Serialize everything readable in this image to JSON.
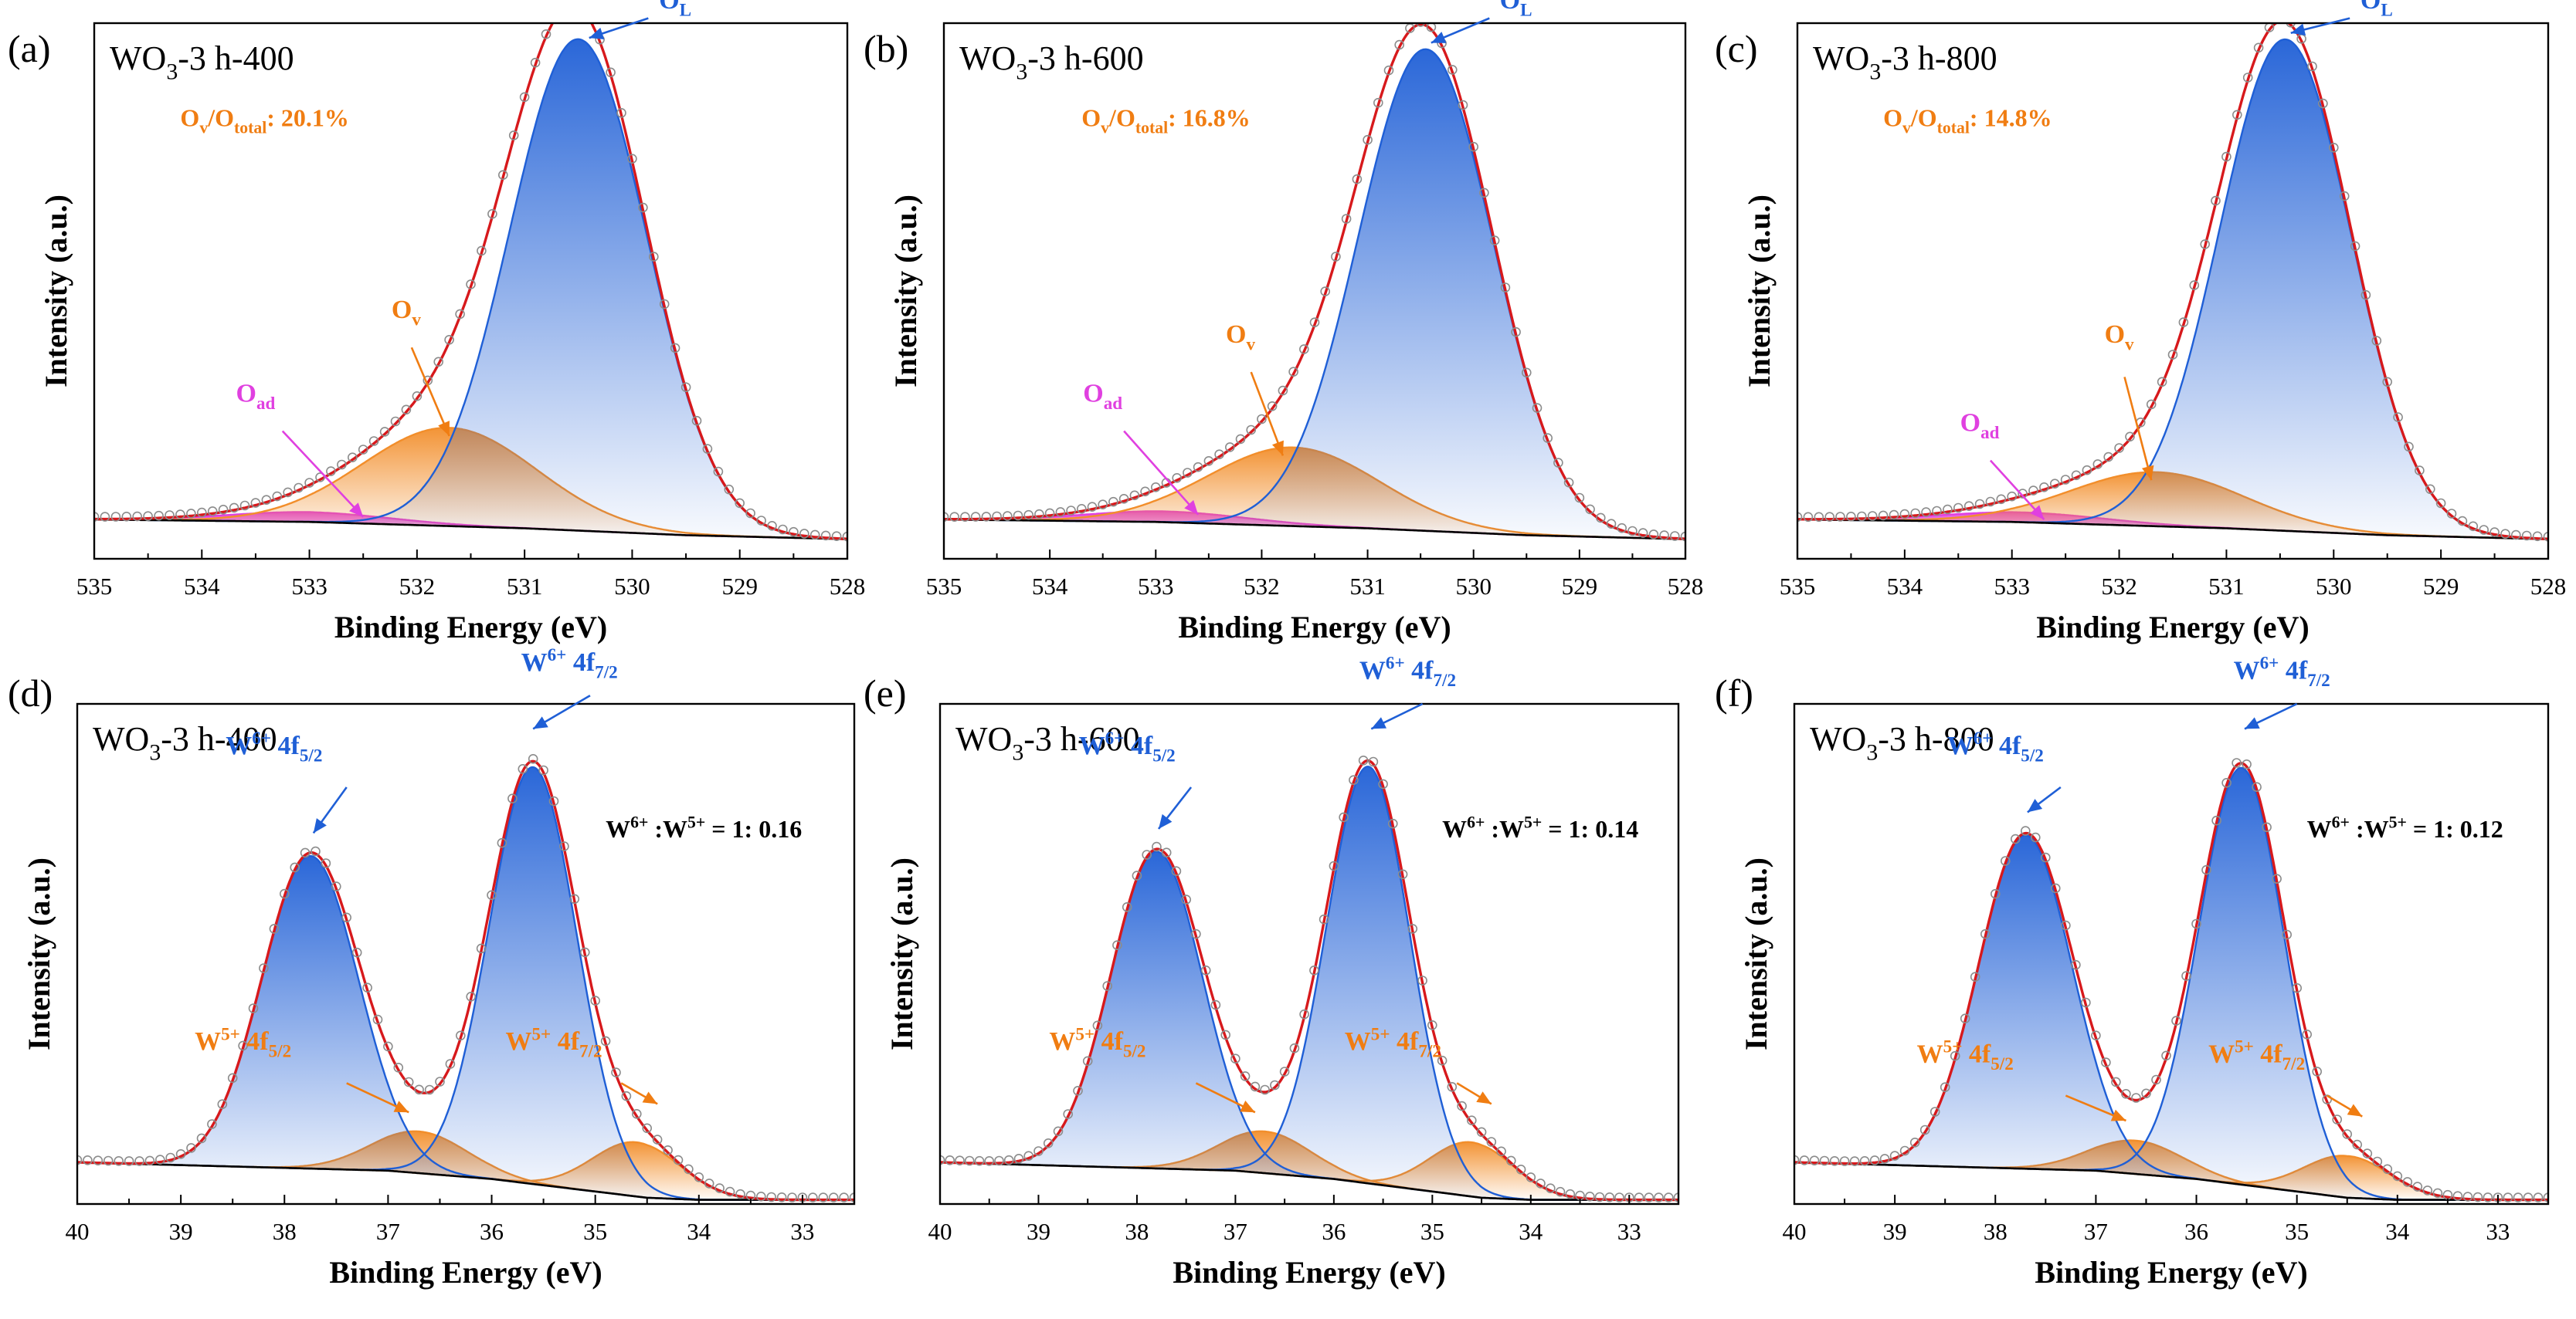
{
  "figure": {
    "colors": {
      "axis": "#000000",
      "envelope": "#d7191c",
      "raw_marker": "#8c8c8c",
      "background_line": "#000000",
      "lattice_blue": "#1f5fd6",
      "vacancy_orange": "#f28e2b",
      "adsorbed_magenta": "#e040e0",
      "annotation_blue": "#1f5fd6",
      "annotation_orange": "#f07d12",
      "annotation_black": "#000000"
    }
  },
  "chart_data": [
    {
      "panel": "(a)",
      "type": "line",
      "region": "O1s",
      "sample": "WO",
      "sample_sub": "3",
      "sample_rest": "-3 h-400",
      "xlabel": "Binding Energy (eV)",
      "ylabel": "Intensity (a.u.)",
      "xlim": [
        535,
        528
      ],
      "ylim": [
        -0.04,
        1.05
      ],
      "xticks": [
        535,
        534,
        533,
        532,
        531,
        530,
        529,
        528
      ],
      "baseline": {
        "x": [
          535,
          533,
          531,
          529.5,
          528
        ],
        "y": [
          0.04,
          0.035,
          0.022,
          0.008,
          0.0
        ]
      },
      "peaks": [
        {
          "name": "OL",
          "center": 530.5,
          "height": 1.0,
          "fwhm": 1.5,
          "color_key": "lattice_blue",
          "fill": true
        },
        {
          "name": "Ov",
          "center": 531.7,
          "height": 0.2,
          "fwhm": 1.9,
          "color_key": "vacancy_orange",
          "fill": true
        },
        {
          "name": "Oad",
          "center": 533.0,
          "height": 0.02,
          "fwhm": 1.8,
          "color_key": "adsorbed_magenta",
          "fill": true
        }
      ],
      "raw_step": 0.1,
      "annotations": [
        {
          "type": "label",
          "base": "O",
          "sub": "L",
          "tx": 529.6,
          "ty": 1.08,
          "ax": 529.85,
          "ay": 1.06,
          "bx": 530.4,
          "by": 1.02,
          "color_key": "annotation_blue"
        },
        {
          "type": "label",
          "base": "O",
          "sub": "v",
          "tx": 532.1,
          "ty": 0.45,
          "ax": 532.05,
          "ay": 0.39,
          "bx": 531.7,
          "by": 0.21,
          "color_key": "annotation_orange"
        },
        {
          "type": "label",
          "base": "O",
          "sub": "ad",
          "tx": 533.5,
          "ty": 0.28,
          "ax": 533.25,
          "ay": 0.22,
          "bx": 532.5,
          "by": 0.045,
          "color_key": "adsorbed_magenta"
        },
        {
          "type": "ratio",
          "tx": 534.2,
          "ty": 0.84,
          "color_key": "annotation_orange",
          "parts": [
            [
              "O",
              ""
            ],
            [
              "v",
              "sub"
            ],
            [
              "/O",
              ""
            ],
            [
              "total",
              "sub"
            ],
            [
              ": 20.1%",
              ""
            ]
          ]
        }
      ]
    },
    {
      "panel": "(b)",
      "type": "line",
      "region": "O1s",
      "sample": "WO",
      "sample_sub": "3",
      "sample_rest": "-3 h-600",
      "xlabel": "Binding Energy (eV)",
      "ylabel": "Intensity (a.u.)",
      "xlim": [
        535,
        528
      ],
      "ylim": [
        -0.04,
        1.05
      ],
      "xticks": [
        535,
        534,
        533,
        532,
        531,
        530,
        529,
        528
      ],
      "baseline": {
        "x": [
          535,
          533,
          531,
          529.5,
          528
        ],
        "y": [
          0.04,
          0.035,
          0.022,
          0.008,
          0.0
        ]
      },
      "peaks": [
        {
          "name": "OL",
          "center": 530.45,
          "height": 0.98,
          "fwhm": 1.5,
          "color_key": "lattice_blue",
          "fill": true
        },
        {
          "name": "Ov",
          "center": 531.7,
          "height": 0.16,
          "fwhm": 1.9,
          "color_key": "vacancy_orange",
          "fill": true
        },
        {
          "name": "Oad",
          "center": 532.9,
          "height": 0.022,
          "fwhm": 1.8,
          "color_key": "adsorbed_magenta",
          "fill": true
        }
      ],
      "raw_step": 0.1,
      "annotations": [
        {
          "type": "label",
          "base": "O",
          "sub": "L",
          "tx": 529.6,
          "ty": 1.08,
          "ax": 529.85,
          "ay": 1.06,
          "bx": 530.4,
          "by": 1.01,
          "color_key": "annotation_blue"
        },
        {
          "type": "label",
          "base": "O",
          "sub": "v",
          "tx": 532.2,
          "ty": 0.4,
          "ax": 532.1,
          "ay": 0.34,
          "bx": 531.8,
          "by": 0.17,
          "color_key": "annotation_orange"
        },
        {
          "type": "label",
          "base": "O",
          "sub": "ad",
          "tx": 533.5,
          "ty": 0.28,
          "ax": 533.3,
          "ay": 0.22,
          "bx": 532.6,
          "by": 0.05,
          "color_key": "adsorbed_magenta"
        },
        {
          "type": "ratio",
          "tx": 533.7,
          "ty": 0.84,
          "color_key": "annotation_orange",
          "parts": [
            [
              "O",
              ""
            ],
            [
              "v",
              "sub"
            ],
            [
              "/O",
              ""
            ],
            [
              "total",
              "sub"
            ],
            [
              ": 16.8%",
              ""
            ]
          ]
        }
      ]
    },
    {
      "panel": "(c)",
      "type": "line",
      "region": "O1s",
      "sample": "WO",
      "sample_sub": "3",
      "sample_rest": "-3 h-800",
      "xlabel": "Binding Energy (eV)",
      "ylabel": "Intensity (a.u.)",
      "xlim": [
        535,
        528
      ],
      "ylim": [
        -0.04,
        1.05
      ],
      "xticks": [
        535,
        534,
        533,
        532,
        531,
        530,
        529,
        528
      ],
      "baseline": {
        "x": [
          535,
          533,
          531,
          529.5,
          528
        ],
        "y": [
          0.04,
          0.035,
          0.022,
          0.008,
          0.0
        ]
      },
      "peaks": [
        {
          "name": "OL",
          "center": 530.45,
          "height": 1.0,
          "fwhm": 1.45,
          "color_key": "lattice_blue",
          "fill": true
        },
        {
          "name": "Ov",
          "center": 531.65,
          "height": 0.11,
          "fwhm": 1.9,
          "color_key": "vacancy_orange",
          "fill": true
        },
        {
          "name": "Oad",
          "center": 532.9,
          "height": 0.02,
          "fwhm": 1.8,
          "color_key": "adsorbed_magenta",
          "fill": true
        }
      ],
      "raw_step": 0.1,
      "annotations": [
        {
          "type": "label",
          "base": "O",
          "sub": "L",
          "tx": 529.6,
          "ty": 1.08,
          "ax": 529.85,
          "ay": 1.06,
          "bx": 530.4,
          "by": 1.03,
          "color_key": "annotation_blue"
        },
        {
          "type": "label",
          "base": "O",
          "sub": "v",
          "tx": 532.0,
          "ty": 0.4,
          "ax": 531.95,
          "ay": 0.33,
          "bx": 531.7,
          "by": 0.12,
          "color_key": "annotation_orange"
        },
        {
          "type": "label",
          "base": "O",
          "sub": "ad",
          "tx": 533.3,
          "ty": 0.22,
          "ax": 533.2,
          "ay": 0.16,
          "bx": 532.7,
          "by": 0.04,
          "color_key": "adsorbed_magenta"
        },
        {
          "type": "ratio",
          "tx": 534.2,
          "ty": 0.84,
          "color_key": "annotation_orange",
          "parts": [
            [
              "O",
              ""
            ],
            [
              "v",
              "sub"
            ],
            [
              "/O",
              ""
            ],
            [
              "total",
              "sub"
            ],
            [
              ": 14.8%",
              ""
            ]
          ]
        }
      ]
    },
    {
      "panel": "(d)",
      "type": "line",
      "region": "W4f",
      "sample": "WO",
      "sample_sub": "3",
      "sample_rest": "-3 h-400",
      "xlabel": "Binding Energy (eV)",
      "ylabel": "Intensity (a.u.)",
      "xlim": [
        40,
        32.5
      ],
      "ylim": [
        -0.1,
        1.1
      ],
      "xticks": [
        40,
        39,
        38,
        37,
        36,
        35,
        34,
        33
      ],
      "baseline": {
        "x": [
          40,
          38.5,
          37,
          36,
          35,
          34.5,
          34,
          33,
          32.5
        ],
        "y": [
          0.0,
          -0.01,
          -0.02,
          -0.04,
          -0.07,
          -0.085,
          -0.09,
          -0.09,
          -0.09
        ]
      },
      "peaks": [
        {
          "name": "W6+ 4f5/2",
          "center": 37.75,
          "height": 0.75,
          "fwhm": 1.1,
          "color_key": "lattice_blue",
          "fill": true
        },
        {
          "name": "W6+ 4f7/2",
          "center": 35.6,
          "height": 1.0,
          "fwhm": 1.0,
          "color_key": "lattice_blue",
          "fill": true
        },
        {
          "name": "W5+ 4f5/2",
          "center": 36.7,
          "height": 0.1,
          "fwhm": 1.1,
          "color_key": "vacancy_orange",
          "fill": true
        },
        {
          "name": "W5+ 4f7/2",
          "center": 34.6,
          "height": 0.13,
          "fwhm": 1.0,
          "color_key": "vacancy_orange",
          "fill": true
        }
      ],
      "raw_step": 0.1,
      "annotations": [
        {
          "type": "label",
          "base": "W",
          "sup": "6+",
          "rest": " 4f",
          "sub": "5/2",
          "tx": 38.1,
          "ty": 0.98,
          "ax": 37.4,
          "ay": 0.9,
          "bx": 37.72,
          "by": 0.79,
          "color_key": "annotation_blue"
        },
        {
          "type": "label",
          "base": "W",
          "sup": "6+",
          "rest": " 4f",
          "sub": "7/2",
          "tx": 35.25,
          "ty": 1.18,
          "ax": 35.05,
          "ay": 1.12,
          "bx": 35.6,
          "by": 1.04,
          "color_key": "annotation_blue"
        },
        {
          "type": "label",
          "base": "W",
          "sup": "5+",
          "rest": " 4f",
          "sub": "5/2",
          "tx": 38.4,
          "ty": 0.27,
          "ax": 37.4,
          "ay": 0.19,
          "bx": 36.8,
          "by": 0.12,
          "color_key": "annotation_orange"
        },
        {
          "type": "label",
          "base": "W",
          "sup": "5+",
          "rest": " 4f",
          "sub": "7/2",
          "tx": 35.4,
          "ty": 0.27,
          "ax": 34.75,
          "ay": 0.19,
          "bx": 34.4,
          "by": 0.14,
          "color_key": "annotation_orange"
        },
        {
          "type": "ratio",
          "tx": 34.9,
          "ty": 0.78,
          "color_key": "annotation_black",
          "parts": [
            [
              "W",
              ""
            ],
            [
              "6+",
              "sup"
            ],
            [
              " :W",
              ""
            ],
            [
              "5+",
              "sup"
            ],
            [
              " = 1: 0.16",
              ""
            ]
          ]
        }
      ]
    },
    {
      "panel": "(e)",
      "type": "line",
      "region": "W4f",
      "sample": "WO",
      "sample_sub": "3",
      "sample_rest": "-3 h-600",
      "xlabel": "Binding Energy (eV)",
      "ylabel": "Intensity (a.u.)",
      "xlim": [
        40,
        32.5
      ],
      "ylim": [
        -0.1,
        1.1
      ],
      "xticks": [
        40,
        39,
        38,
        37,
        36,
        35,
        34,
        33
      ],
      "baseline": {
        "x": [
          40,
          38.5,
          37,
          36,
          35,
          34.5,
          34,
          33,
          32.5
        ],
        "y": [
          0.0,
          -0.01,
          -0.02,
          -0.04,
          -0.07,
          -0.085,
          -0.09,
          -0.09,
          -0.09
        ]
      },
      "peaks": [
        {
          "name": "W6+ 4f5/2",
          "center": 37.8,
          "height": 0.76,
          "fwhm": 1.1,
          "color_key": "lattice_blue",
          "fill": true
        },
        {
          "name": "W6+ 4f7/2",
          "center": 35.65,
          "height": 1.0,
          "fwhm": 1.0,
          "color_key": "lattice_blue",
          "fill": true
        },
        {
          "name": "W5+ 4f5/2",
          "center": 36.7,
          "height": 0.1,
          "fwhm": 1.1,
          "color_key": "vacancy_orange",
          "fill": true
        },
        {
          "name": "W5+ 4f7/2",
          "center": 34.6,
          "height": 0.13,
          "fwhm": 1.0,
          "color_key": "vacancy_orange",
          "fill": true
        }
      ],
      "raw_step": 0.1,
      "annotations": [
        {
          "type": "label",
          "base": "W",
          "sup": "6+",
          "rest": " 4f",
          "sub": "5/2",
          "tx": 38.1,
          "ty": 0.98,
          "ax": 37.45,
          "ay": 0.9,
          "bx": 37.78,
          "by": 0.8,
          "color_key": "annotation_blue"
        },
        {
          "type": "label",
          "base": "W",
          "sup": "6+",
          "rest": " 4f",
          "sub": "7/2",
          "tx": 35.25,
          "ty": 1.16,
          "ax": 35.1,
          "ay": 1.1,
          "bx": 35.62,
          "by": 1.04,
          "color_key": "annotation_blue"
        },
        {
          "type": "label",
          "base": "W",
          "sup": "5+",
          "rest": " 4f",
          "sub": "5/2",
          "tx": 38.4,
          "ty": 0.27,
          "ax": 37.4,
          "ay": 0.19,
          "bx": 36.8,
          "by": 0.12,
          "color_key": "annotation_orange"
        },
        {
          "type": "label",
          "base": "W",
          "sup": "5+",
          "rest": " 4f",
          "sub": "7/2",
          "tx": 35.4,
          "ty": 0.27,
          "ax": 34.75,
          "ay": 0.19,
          "bx": 34.4,
          "by": 0.14,
          "color_key": "annotation_orange"
        },
        {
          "type": "ratio",
          "tx": 34.9,
          "ty": 0.78,
          "color_key": "annotation_black",
          "parts": [
            [
              "W",
              ""
            ],
            [
              "6+",
              "sup"
            ],
            [
              " :W",
              ""
            ],
            [
              "5+",
              "sup"
            ],
            [
              " = 1: 0.14",
              ""
            ]
          ]
        }
      ]
    },
    {
      "panel": "(f)",
      "type": "line",
      "region": "W4f",
      "sample": "WO",
      "sample_sub": "3",
      "sample_rest": "-3 h-800",
      "xlabel": "Binding Energy (eV)",
      "ylabel": "Intensity (a.u.)",
      "xlim": [
        40,
        32.5
      ],
      "ylim": [
        -0.1,
        1.1
      ],
      "xticks": [
        40,
        39,
        38,
        37,
        36,
        35,
        34,
        33
      ],
      "baseline": {
        "x": [
          40,
          38.5,
          37,
          36,
          35,
          34.5,
          34,
          33,
          32.5
        ],
        "y": [
          0.0,
          -0.01,
          -0.02,
          -0.04,
          -0.07,
          -0.085,
          -0.09,
          -0.09,
          -0.09
        ]
      },
      "peaks": [
        {
          "name": "W6+ 4f5/2",
          "center": 37.7,
          "height": 0.8,
          "fwhm": 1.1,
          "color_key": "lattice_blue",
          "fill": true
        },
        {
          "name": "W6+ 4f7/2",
          "center": 35.55,
          "height": 1.0,
          "fwhm": 1.0,
          "color_key": "lattice_blue",
          "fill": true
        },
        {
          "name": "W5+ 4f5/2",
          "center": 36.6,
          "height": 0.08,
          "fwhm": 1.1,
          "color_key": "vacancy_orange",
          "fill": true
        },
        {
          "name": "W5+ 4f7/2",
          "center": 34.5,
          "height": 0.1,
          "fwhm": 1.0,
          "color_key": "vacancy_orange",
          "fill": true
        }
      ],
      "raw_step": 0.1,
      "annotations": [
        {
          "type": "label",
          "base": "W",
          "sup": "6+",
          "rest": " 4f",
          "sub": "5/2",
          "tx": 38.0,
          "ty": 0.98,
          "ax": 37.35,
          "ay": 0.9,
          "bx": 37.68,
          "by": 0.84,
          "color_key": "annotation_blue"
        },
        {
          "type": "label",
          "base": "W",
          "sup": "6+",
          "rest": " 4f",
          "sub": "7/2",
          "tx": 35.15,
          "ty": 1.16,
          "ax": 35.0,
          "ay": 1.1,
          "bx": 35.52,
          "by": 1.04,
          "color_key": "annotation_blue"
        },
        {
          "type": "label",
          "base": "W",
          "sup": "5+",
          "rest": " 4f",
          "sub": "5/2",
          "tx": 38.3,
          "ty": 0.24,
          "ax": 37.3,
          "ay": 0.16,
          "bx": 36.7,
          "by": 0.1,
          "color_key": "annotation_orange"
        },
        {
          "type": "label",
          "base": "W",
          "sup": "5+",
          "rest": " 4f",
          "sub": "7/2",
          "tx": 35.4,
          "ty": 0.24,
          "ax": 34.7,
          "ay": 0.16,
          "bx": 34.35,
          "by": 0.11,
          "color_key": "annotation_orange"
        },
        {
          "type": "ratio",
          "tx": 34.9,
          "ty": 0.78,
          "color_key": "annotation_black",
          "parts": [
            [
              "W",
              ""
            ],
            [
              "6+",
              "sup"
            ],
            [
              " :W",
              ""
            ],
            [
              "5+",
              "sup"
            ],
            [
              " = 1: 0.12",
              ""
            ]
          ]
        }
      ]
    }
  ]
}
